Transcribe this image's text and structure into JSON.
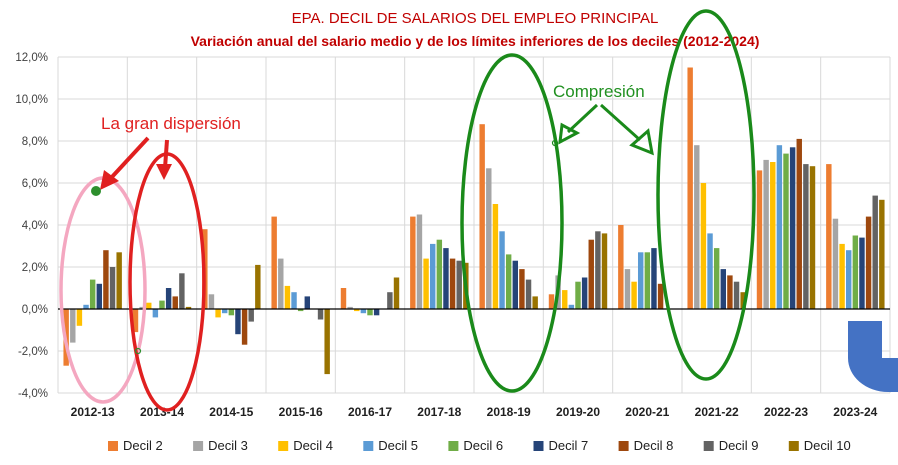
{
  "chart_data": {
    "type": "bar",
    "title": "EPA. DECIL DE SALARIOS DEL EMPLEO PRINCIPAL",
    "subtitle": "Variación anual del salario medio y de los límites inferiores de los deciles (2012-2024)",
    "ylim": [
      -4,
      12
    ],
    "yticks": [
      "-4,0%",
      "-2,0%",
      "0,0%",
      "2,0%",
      "4,0%",
      "6,0%",
      "8,0%",
      "10,0%",
      "12,0%"
    ],
    "grid": true,
    "legend_position": "bottom",
    "categories": [
      "2012-13",
      "2013-14",
      "2014-15",
      "2015-16",
      "2016-17",
      "2017-18",
      "2018-19",
      "2019-20",
      "2020-21",
      "2021-22",
      "2022-23",
      "2023-24"
    ],
    "series": [
      {
        "name": "Decil 2",
        "color": "#ed7d31",
        "values": [
          -2.7,
          -1.1,
          3.8,
          4.4,
          1.0,
          4.4,
          8.8,
          0.7,
          4.0,
          11.5,
          6.6,
          6.9
        ]
      },
      {
        "name": "Decil 3",
        "color": "#a5a5a5",
        "values": [
          -1.6,
          0.1,
          0.7,
          2.4,
          0.1,
          4.5,
          6.7,
          1.6,
          1.9,
          7.8,
          7.1,
          4.3
        ]
      },
      {
        "name": "Decil 4",
        "color": "#ffc000",
        "values": [
          -0.8,
          0.3,
          -0.4,
          1.1,
          -0.1,
          2.4,
          5.0,
          0.9,
          1.3,
          6.0,
          7.0,
          3.1
        ]
      },
      {
        "name": "Decil 5",
        "color": "#5b9bd5",
        "values": [
          0.2,
          -0.4,
          -0.2,
          0.8,
          -0.2,
          3.1,
          3.7,
          0.2,
          2.7,
          3.6,
          7.8,
          2.8
        ]
      },
      {
        "name": "Decil 6",
        "color": "#70ad47",
        "values": [
          1.4,
          0.4,
          -0.3,
          -0.1,
          -0.3,
          3.3,
          2.6,
          1.3,
          2.7,
          2.9,
          7.4,
          3.5
        ]
      },
      {
        "name": "Decil 7",
        "color": "#264478",
        "values": [
          1.2,
          1.0,
          -1.2,
          0.6,
          -0.3,
          2.9,
          2.3,
          1.5,
          2.9,
          1.9,
          7.7,
          3.4
        ]
      },
      {
        "name": "Decil 8",
        "color": "#9e480e",
        "values": [
          2.8,
          0.6,
          -1.7,
          0.0,
          0.0,
          2.4,
          1.9,
          3.3,
          1.2,
          1.6,
          8.1,
          4.4
        ]
      },
      {
        "name": "Decil 9",
        "color": "#636363",
        "values": [
          2.0,
          1.7,
          -0.6,
          -0.5,
          0.8,
          2.3,
          1.4,
          3.7,
          0.0,
          1.3,
          6.9,
          5.4
        ]
      },
      {
        "name": "Decil 10",
        "color": "#997300",
        "values": [
          2.7,
          0.1,
          2.1,
          -3.1,
          1.5,
          2.2,
          0.6,
          3.6,
          0.0,
          0.8,
          6.8,
          5.2
        ]
      }
    ]
  },
  "annotations": {
    "dispersion_label": "La gran dispersión",
    "compression_label": "Compresión",
    "red_color": "#e02020",
    "pink_color": "#f4a7c0",
    "green_color": "#1a8a1a",
    "shape_color": "#4472c4"
  }
}
